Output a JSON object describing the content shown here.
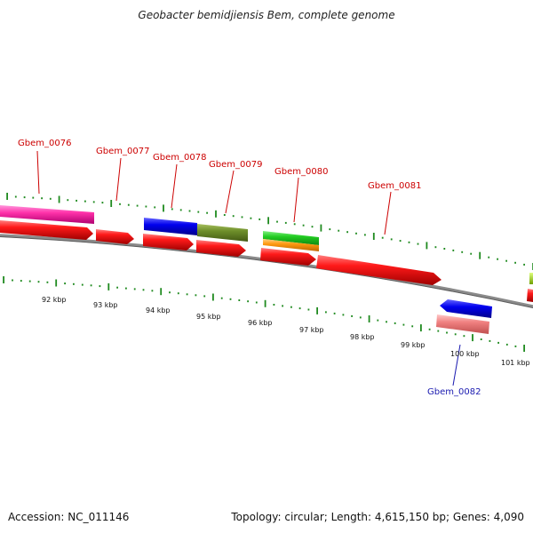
{
  "title": "Geobacter bemidjiensis Bem, complete genome",
  "footer": {
    "accession": "Accession: NC_011146",
    "summary": "Topology: circular; Length: 4,615,150 bp; Genes: 4,090"
  },
  "colors": {
    "backbone": "#8a8a8a",
    "tick": "#1f8a1f",
    "label_forward": "#cc0000",
    "label_reverse": "#1a1ab0"
  },
  "scale_labels": [
    "92 kbp",
    "93 kbp",
    "94 kbp",
    "95 kbp",
    "96 kbp",
    "97 kbp",
    "98 kbp",
    "99 kbp",
    "100 kbp",
    "101 kbp"
  ],
  "gene_labels": [
    {
      "name": "Gbem_0076",
      "strand": "forward"
    },
    {
      "name": "Gbem_0077",
      "strand": "forward"
    },
    {
      "name": "Gbem_0078",
      "strand": "forward"
    },
    {
      "name": "Gbem_0079",
      "strand": "forward"
    },
    {
      "name": "Gbem_0080",
      "strand": "forward"
    },
    {
      "name": "Gbem_0081",
      "strand": "forward"
    },
    {
      "name": "Gbem_0082",
      "strand": "reverse"
    }
  ]
}
